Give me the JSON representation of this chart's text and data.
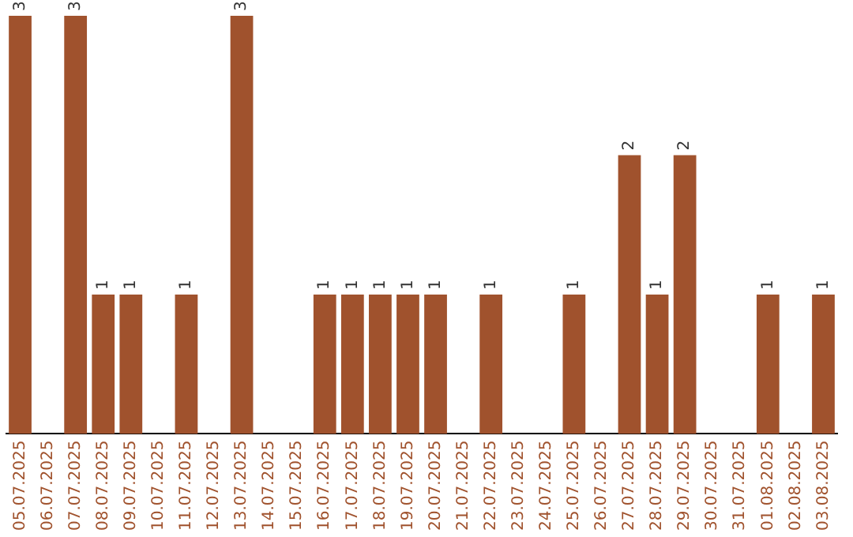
{
  "chart_data": {
    "type": "bar",
    "categories": [
      "05.07.2025",
      "06.07.2025",
      "07.07.2025",
      "08.07.2025",
      "09.07.2025",
      "10.07.2025",
      "11.07.2025",
      "12.07.2025",
      "13.07.2025",
      "14.07.2025",
      "15.07.2025",
      "16.07.2025",
      "17.07.2025",
      "18.07.2025",
      "19.07.2025",
      "20.07.2025",
      "21.07.2025",
      "22.07.2025",
      "23.07.2025",
      "24.07.2025",
      "25.07.2025",
      "26.07.2025",
      "27.07.2025",
      "28.07.2025",
      "29.07.2025",
      "30.07.2025",
      "31.07.2025",
      "01.08.2025",
      "02.08.2025",
      "03.08.2025"
    ],
    "values": [
      3,
      0,
      3,
      1,
      1,
      0,
      1,
      0,
      3,
      0,
      0,
      1,
      1,
      1,
      1,
      1,
      0,
      1,
      0,
      0,
      1,
      0,
      2,
      1,
      2,
      0,
      0,
      1,
      0,
      1
    ],
    "value_labels": [
      "3",
      null,
      "3",
      "1",
      "1",
      null,
      "1",
      null,
      "3",
      null,
      null,
      "1",
      "1",
      "1",
      "1",
      "1",
      null,
      "1",
      null,
      null,
      "1",
      null,
      "2",
      "1",
      "2",
      null,
      null,
      "1",
      null,
      "1"
    ],
    "color": "#a0522d",
    "grid": false,
    "legend": false,
    "tick_labels": "x"
  }
}
